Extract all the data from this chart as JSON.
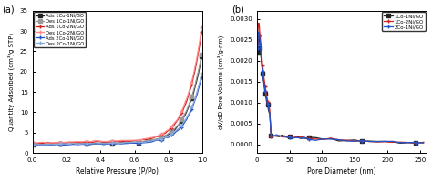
{
  "panel_a": {
    "title": "(a)",
    "xlabel": "Relative Pressure (P/Po)",
    "ylabel": "Quantity Adsorbed (cm³/g STP)",
    "xlim": [
      0.0,
      1.0
    ],
    "ylim": [
      0,
      35
    ],
    "yticks": [
      0,
      5,
      10,
      15,
      20,
      25,
      30,
      35
    ],
    "xticks": [
      0.0,
      0.2,
      0.4,
      0.6,
      0.8,
      1.0
    ],
    "series": [
      {
        "label": "Ads 1Co-1Ni/GO",
        "color": "#222222",
        "marker": "s",
        "linestyle": "-",
        "markersize": 2.5
      },
      {
        "label": "Des 1Co-1Ni/GO",
        "color": "#999999",
        "marker": "s",
        "linestyle": "-",
        "markersize": 2.5
      },
      {
        "label": "Ads 1Co-2Ni/GO",
        "color": "#cc2222",
        "marker": "+",
        "linestyle": "-",
        "markersize": 3.5
      },
      {
        "label": "Des 1Co-2Ni/GO",
        "color": "#ff8888",
        "marker": "+",
        "linestyle": "-",
        "markersize": 3.5
      },
      {
        "label": "Ads 2Co-1Ni/GO",
        "color": "#2255cc",
        "marker": "+",
        "linestyle": "-",
        "markersize": 3.5
      },
      {
        "label": "Des 2Co-1Ni/GO",
        "color": "#88aadd",
        "marker": "+",
        "linestyle": "-",
        "markersize": 3.5
      }
    ]
  },
  "panel_b": {
    "title": "(b)",
    "xlabel": "Pore Diameter (nm)",
    "ylabel": "dV/dD Pore Volume (cm³/g·nm)",
    "xlim": [
      0,
      260
    ],
    "ylim": [
      -0.0002,
      0.0032
    ],
    "yticks": [
      0.0,
      0.0005,
      0.001,
      0.0015,
      0.002,
      0.0025,
      0.003
    ],
    "xticks": [
      0,
      50,
      100,
      150,
      200,
      250
    ],
    "series": [
      {
        "label": "1Co-1Ni/GO",
        "color": "#222222",
        "marker": "s",
        "linestyle": "-",
        "markersize": 2.5
      },
      {
        "label": "1Co-2Ni/GO",
        "color": "#cc2222",
        "marker": "+",
        "linestyle": "-",
        "markersize": 3.5
      },
      {
        "label": "2Co-1Ni/GO",
        "color": "#2255cc",
        "marker": "+",
        "linestyle": "-",
        "markersize": 3.5
      }
    ]
  }
}
